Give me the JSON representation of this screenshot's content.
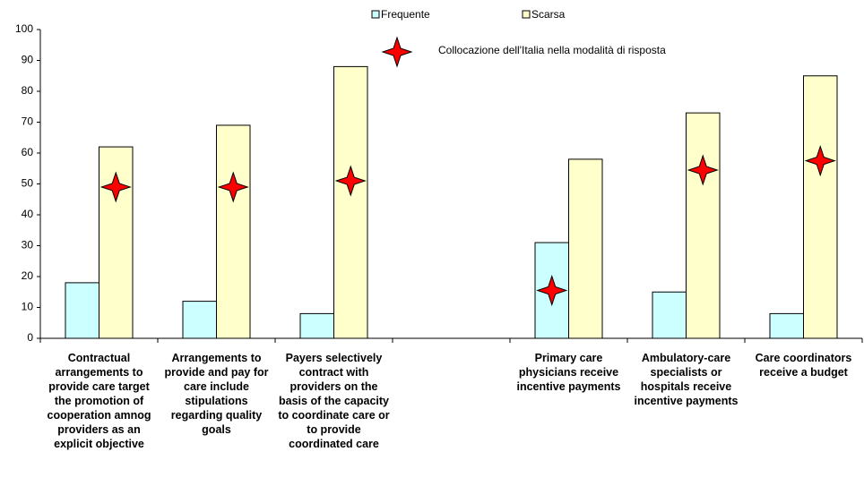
{
  "chart_data": {
    "type": "bar",
    "categories": [
      "Contractual arrangements to provide care target the promotion of cooperation amnog providers as an explicit objective",
      "Arrangements to provide and pay for care include stipulations regarding quality goals",
      "Payers selectively contract with providers on the basis of the capacity to coordinate care or to provide coordinated care",
      null,
      "Primary care physicians receive incentive payments",
      "Ambulatory-care specialists or hospitals receive incentive payments",
      "Care coordinators receive a budget"
    ],
    "series": [
      {
        "name": "Frequente",
        "color": "#ccffff",
        "type": "bar",
        "values": [
          18,
          12,
          8,
          null,
          31,
          15,
          8
        ]
      },
      {
        "name": "Scarsa",
        "color": "#ffffcc",
        "type": "bar",
        "values": [
          62,
          69,
          88,
          null,
          58,
          73,
          85
        ]
      },
      {
        "name": "Collocazione dell'Italia nella modalità di risposta",
        "color": "#ff0000",
        "type": "marker",
        "values": [
          49,
          49,
          51,
          null,
          15.5,
          54.5,
          57.5
        ]
      }
    ],
    "ylim": [
      0,
      100
    ],
    "yticks": [
      0,
      10,
      20,
      30,
      40,
      50,
      60,
      70,
      80,
      90,
      100
    ],
    "grid": false
  }
}
